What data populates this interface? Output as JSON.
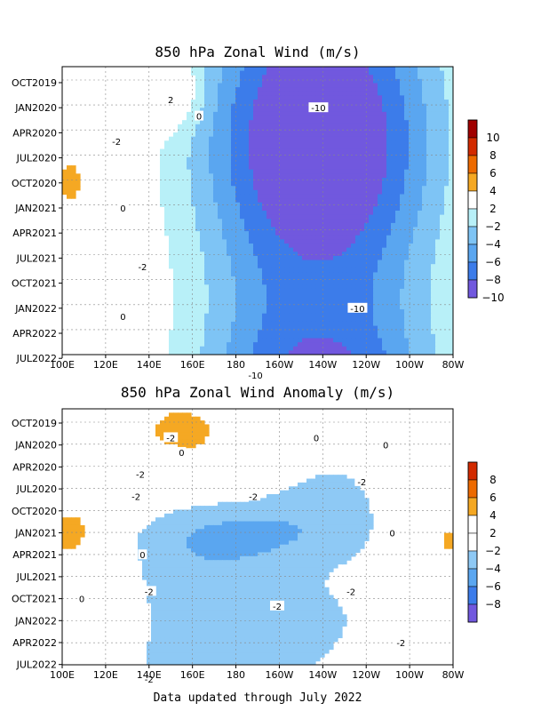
{
  "footer": "Data updated through July 2022",
  "colors": {
    "p10": "#a00000",
    "p8": "#d22a00",
    "p6": "#ed6a00",
    "p4": "#f5a823",
    "p2": "#ffffff",
    "m2": "#ffffff",
    "m4": "#b8f0f8",
    "m6": "#7ec4f5",
    "m8": "#5aa6f0",
    "m10": "#3c7cea",
    "m12": "#7158de"
  },
  "chart_data": [
    {
      "type": "heatmap",
      "title": "850 hPa Zonal Wind (m/s)",
      "x_ticks": [
        "100E",
        "120E",
        "140E",
        "160E",
        "180",
        "160W",
        "140W",
        "120W",
        "100W",
        "80W"
      ],
      "y_ticks": [
        "OCT2019",
        "JAN2020",
        "APR2020",
        "JUL2020",
        "OCT2020",
        "JAN2021",
        "APR2021",
        "JUL2021",
        "OCT2021",
        "JAN2022",
        "APR2022",
        "JUL2022"
      ],
      "colorbar": {
        "labels": [
          "10",
          "8",
          "6",
          "4",
          "2",
          "-2",
          "-4",
          "-6",
          "-8",
          "-10"
        ],
        "colors": [
          "#a00000",
          "#d22a00",
          "#ed6a00",
          "#f5a823",
          "#ffffff",
          "#b8f0f8",
          "#7ec4f5",
          "#5aa6f0",
          "#3c7cea",
          "#7158de"
        ]
      },
      "contour_labels": [
        {
          "text": "2",
          "lon": 150,
          "month": 2
        },
        {
          "text": "0",
          "lon": 163,
          "month": 4
        },
        {
          "text": "-2",
          "lon": 125,
          "month": 7
        },
        {
          "text": "-10",
          "lon": -142,
          "month": 3
        },
        {
          "text": "0",
          "lon": 128,
          "month": 15
        },
        {
          "text": "-2",
          "lon": 137,
          "month": 22
        },
        {
          "text": "0",
          "lon": 128,
          "month": 28
        },
        {
          "text": "-10",
          "lon": -124,
          "month": 27
        },
        {
          "text": "-10",
          "lon": -171,
          "month": 35
        }
      ]
    },
    {
      "type": "heatmap",
      "title": "850 hPa Zonal Wind Anomaly (m/s)",
      "x_ticks": [
        "100E",
        "120E",
        "140E",
        "160E",
        "180",
        "160W",
        "140W",
        "120W",
        "100W",
        "80W"
      ],
      "y_ticks": [
        "OCT2019",
        "JAN2020",
        "APR2020",
        "JUL2020",
        "OCT2020",
        "JAN2021",
        "APR2021",
        "JUL2021",
        "OCT2021",
        "JAN2022",
        "APR2022",
        "JUL2022"
      ],
      "colorbar": {
        "labels": [
          "8",
          "6",
          "4",
          "2",
          "-2",
          "-4",
          "-6",
          "-8"
        ],
        "colors": [
          "#d22a00",
          "#ed6a00",
          "#f5a823",
          "#ffffff",
          "#ffffff",
          "#8ec9f5",
          "#5aa6f0",
          "#3c7cea",
          "#7158de"
        ]
      },
      "contour_labels": [
        {
          "text": "-2",
          "lon": 150,
          "month": 2
        },
        {
          "text": "0",
          "lon": 155,
          "month": 4
        },
        {
          "text": "0",
          "lon": -143,
          "month": 2
        },
        {
          "text": "0",
          "lon": -111,
          "month": 3
        },
        {
          "text": "-2",
          "lon": 136,
          "month": 7
        },
        {
          "text": "-2",
          "lon": -122,
          "month": 8
        },
        {
          "text": "-2",
          "lon": 134,
          "month": 10
        },
        {
          "text": "-2",
          "lon": -172,
          "month": 10
        },
        {
          "text": "0",
          "lon": -108,
          "month": 15
        },
        {
          "text": "0",
          "lon": 137,
          "month": 18
        },
        {
          "text": "0",
          "lon": 109,
          "month": 24
        },
        {
          "text": "-2",
          "lon": 140,
          "month": 23
        },
        {
          "text": "-2",
          "lon": -161,
          "month": 25
        },
        {
          "text": "-2",
          "lon": -127,
          "month": 23
        },
        {
          "text": "-2",
          "lon": -104,
          "month": 30
        },
        {
          "text": "-2",
          "lon": 140,
          "month": 35
        }
      ]
    }
  ]
}
